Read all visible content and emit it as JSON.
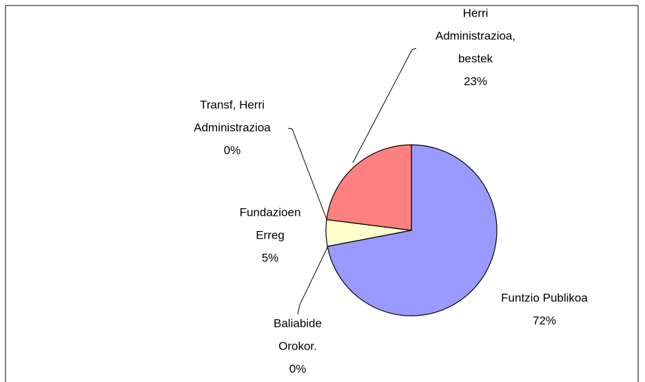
{
  "chart_data": {
    "type": "pie",
    "categories": [
      [
        "Funtzio Publikoa"
      ],
      [
        "Baliabide",
        "Orokor."
      ],
      [
        "Fundazioen",
        "Erreg"
      ],
      [
        "Transf, Herri",
        "Administrazioa"
      ],
      [
        "Herri",
        "Administrazioa,",
        "bestek"
      ]
    ],
    "values": [
      72,
      0,
      5,
      0,
      23
    ],
    "value_labels": [
      "72%",
      "0%",
      "5%",
      "0%",
      "23%"
    ],
    "colors": [
      "#9999ff",
      "#993366",
      "#ffffcc",
      "#ccffff",
      "#ff8080"
    ]
  }
}
